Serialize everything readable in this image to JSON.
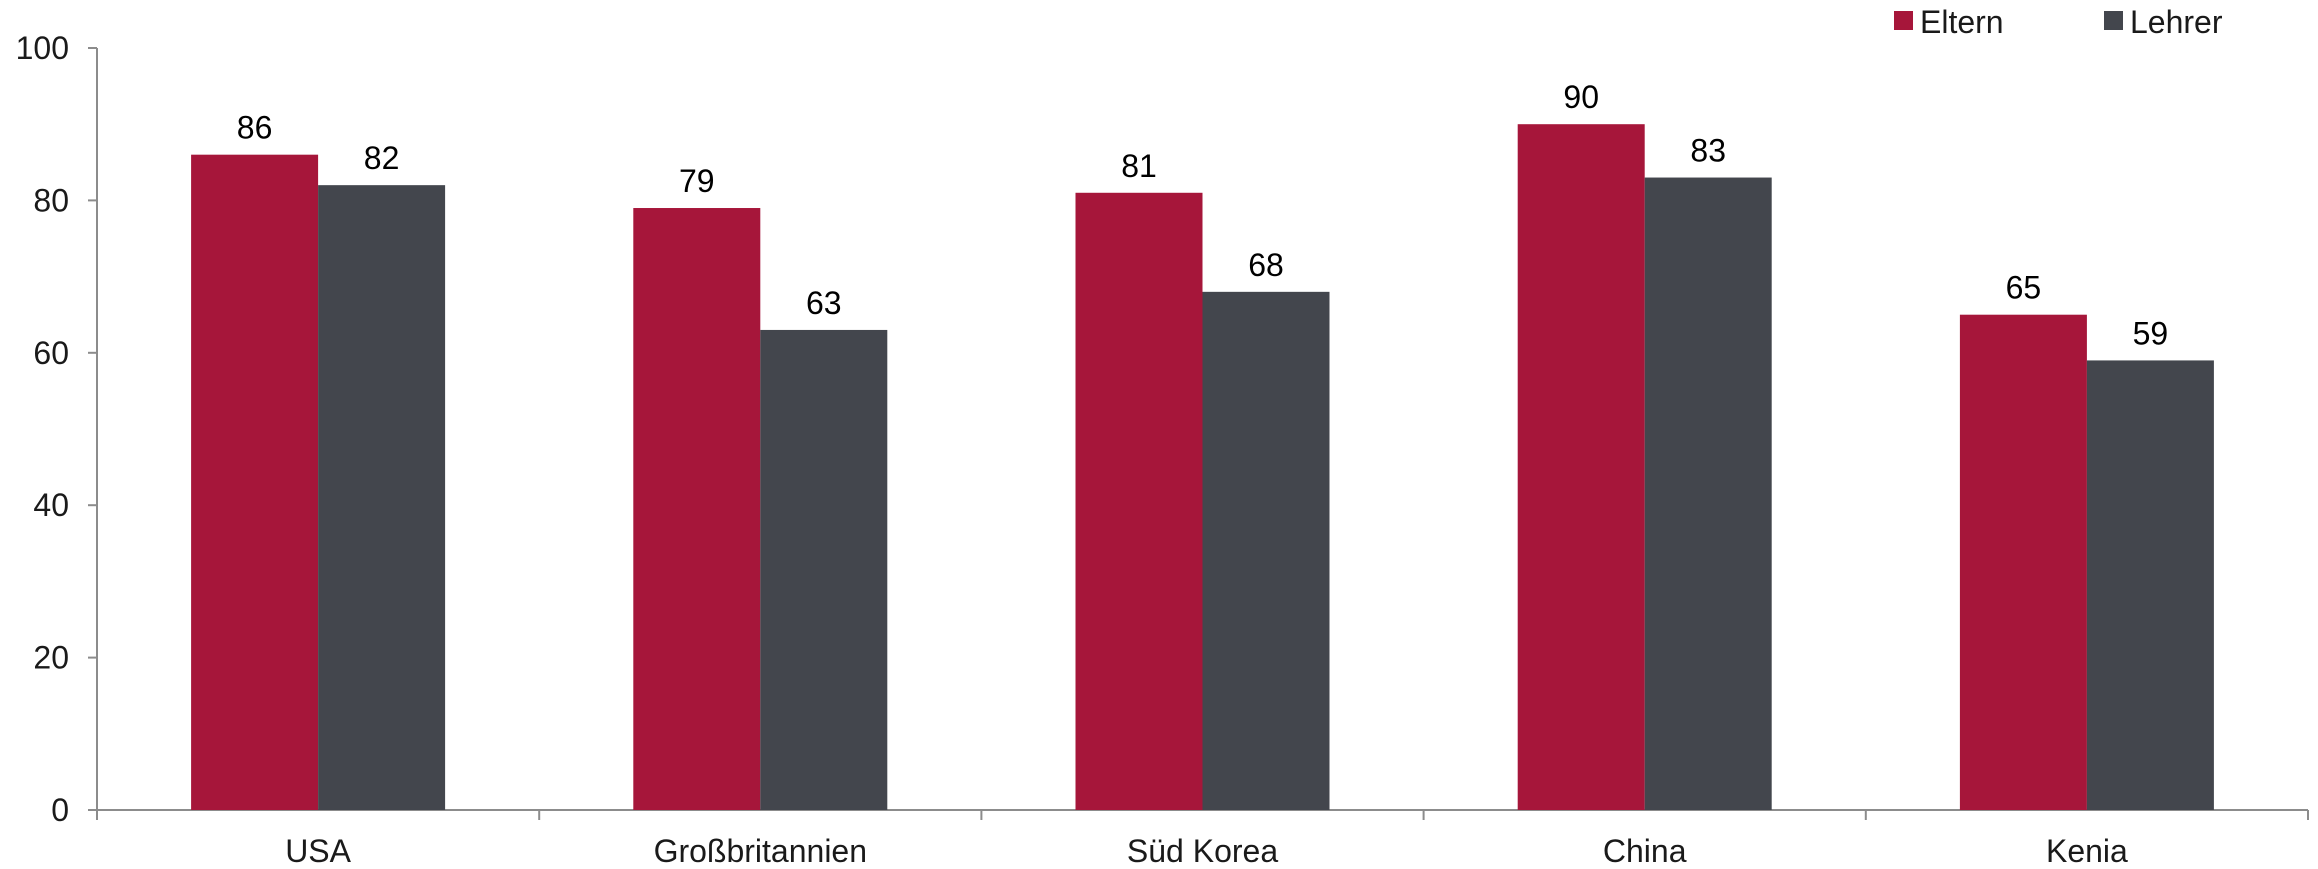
{
  "chart_data": {
    "type": "bar",
    "categories": [
      "USA",
      "Großbritannien",
      "Süd Korea",
      "China",
      "Kenia"
    ],
    "series": [
      {
        "name": "Eltern",
        "color": "#a6163a",
        "values": [
          86,
          79,
          81,
          90,
          65
        ]
      },
      {
        "name": "Lehrer",
        "color": "#43464d",
        "values": [
          82,
          63,
          68,
          83,
          59
        ]
      }
    ],
    "title": "",
    "xlabel": "",
    "ylabel": "",
    "ylim": [
      0,
      100
    ],
    "yticks": [
      0,
      20,
      40,
      60,
      80,
      100
    ],
    "grid": false,
    "legend_position": "top-right",
    "data_labels": true
  }
}
